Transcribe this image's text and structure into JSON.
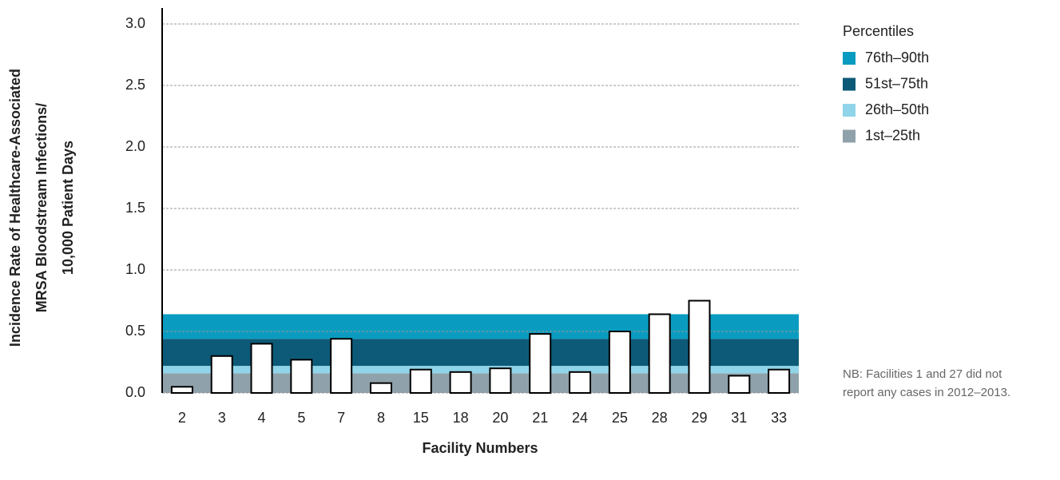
{
  "chart_data": {
    "type": "bar",
    "x_label": "Facility Numbers",
    "y_label": [
      "Incidence Rate of Healthcare-Associated",
      "MRSA Bloodstream Infections/",
      "10,000 Patient Days"
    ],
    "categories": [
      "2",
      "3",
      "4",
      "5",
      "7",
      "8",
      "15",
      "18",
      "20",
      "21",
      "24",
      "25",
      "28",
      "29",
      "31",
      "33"
    ],
    "values": [
      0.05,
      0.3,
      0.4,
      0.27,
      0.44,
      0.08,
      0.19,
      0.17,
      0.2,
      0.48,
      0.17,
      0.5,
      0.64,
      0.75,
      0.14,
      0.19
    ],
    "color": "#ffffff",
    "ylim": [
      0,
      3
    ],
    "yticks": [
      {
        "value": 0,
        "label": "0.0"
      },
      0.5,
      {
        "value": 1,
        "label": "1.0"
      },
      1.5,
      {
        "value": 2,
        "label": "2.0"
      },
      2.5,
      {
        "value": 3,
        "label": "3.0"
      }
    ],
    "grid": true,
    "legend_title": "Percentiles",
    "percentile_bands": [
      {
        "name": "76th–90th",
        "color": "#0a9cc0",
        "value": 0.2
      },
      {
        "name": "51st–75th",
        "color": "#0d5a78",
        "value": 0.22
      },
      {
        "name": "26th–50th",
        "color": "#8fd4e8",
        "value": 0.06
      },
      {
        "name": "1st–25th",
        "color": "#8fa1ab",
        "value": 0.16
      }
    ],
    "note": [
      "NB: Facilities 1 and 27 did not",
      "report any cases in 2012–2013."
    ]
  }
}
